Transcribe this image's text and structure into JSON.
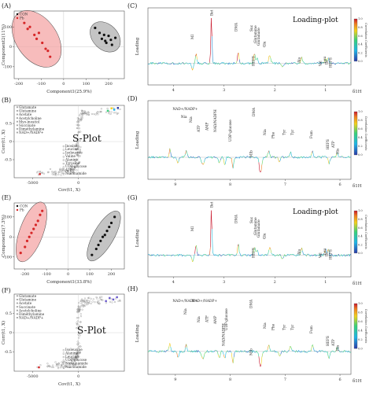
{
  "panels": {
    "A": {
      "letter": "(A)"
    },
    "B": {
      "letter": "(B)"
    },
    "C": {
      "letter": "(C)"
    },
    "D": {
      "letter": "(D)"
    },
    "E": {
      "letter": "(E)"
    },
    "F": {
      "letter": "(F)"
    },
    "G": {
      "letter": "(G)"
    },
    "H": {
      "letter": "(H)"
    }
  },
  "chart_data": [
    {
      "id": "A",
      "type": "scatter",
      "xlabel": "Component1(25.9%)",
      "ylabel": "Component2(11%)",
      "xlim": [
        -220,
        270
      ],
      "ylim": [
        -160,
        180
      ],
      "xticks": [
        -200,
        -100,
        0,
        100,
        200
      ],
      "yticks": [
        -100,
        0,
        100
      ],
      "legend": [
        "CON",
        "Pb"
      ],
      "colors": {
        "CON": "#111111",
        "Pb": "#d62728",
        "pb_ellipse": "#f4a6a6",
        "con_ellipse": "#b0b0b0"
      },
      "series": [
        {
          "name": "CON",
          "x": [
            140,
            160,
            170,
            180,
            185,
            190,
            200,
            210,
            215,
            230
          ],
          "y": [
            95,
            70,
            40,
            60,
            30,
            20,
            55,
            35,
            10,
            45
          ]
        },
        {
          "name": "Pb",
          "x": [
            -175,
            -160,
            -150,
            -130,
            -120,
            -110,
            -95,
            -80,
            -70,
            -60
          ],
          "y": [
            120,
            90,
            100,
            60,
            40,
            70,
            20,
            -10,
            -20,
            -50
          ]
        }
      ]
    },
    {
      "id": "B",
      "type": "scatter",
      "title": "S-Plot",
      "xlabel": "Cov(t1, X)",
      "ylabel": "Corr(t1, X)",
      "xlim": [
        -7000,
        5000
      ],
      "ylim": [
        -1,
        1
      ],
      "xticks": [
        -5000,
        0
      ],
      "yticks": [
        -0.5,
        0,
        0.5
      ],
      "legend_left": [
        "Glutamate",
        "Glutamine",
        "Acetate",
        "Acetylcholine",
        "Myo-inositol",
        "Succinate",
        "Dimethylamine",
        "NAD+/NADP+"
      ],
      "legend_right": [
        "Inosine",
        "Leucine",
        "Isoleucine",
        "Valine",
        "Alanine",
        "Tyrosine",
        "UDP-glucose",
        "ATP",
        "Niacinamide"
      ]
    },
    {
      "id": "C",
      "type": "line",
      "title": "Loading-plot",
      "xlabel": "δ1H",
      "ylabel": "Loading",
      "xticks": [
        4,
        3,
        2,
        1
      ],
      "annotations": [
        "MI",
        "Bet",
        "DMA",
        "Suc",
        "Glutamine",
        "Glutamate",
        "Glu",
        "HEFS",
        "Ala",
        "Val",
        "Leu",
        "Ile",
        "HEFS"
      ],
      "colorbar_label": "Correlation Coefficients",
      "colorbar_ticks": [
        "1.0",
        "0.8",
        "0.6",
        "0.4",
        "0.2",
        "0.0"
      ]
    },
    {
      "id": "D",
      "type": "line",
      "xlabel": "δ1H",
      "ylabel": "Loading",
      "xticks": [
        9,
        8,
        7,
        6
      ],
      "annotations": [
        "NAD+/NADP+",
        "Nia",
        "Nia",
        "ATP",
        "AMP",
        "NAD/NADPH",
        "UDP-glucose",
        "DMA",
        "MIb",
        "Nia",
        "Phe",
        "Tyr",
        "Tyr",
        "Fum",
        "HEFS",
        "ATP",
        "His"
      ],
      "colorbar_label": "Correlation Coefficients",
      "colorbar_ticks": [
        "1.0",
        "0.8",
        "0.6",
        "0.4",
        "0.2",
        "0.0"
      ]
    },
    {
      "id": "E",
      "type": "scatter",
      "xlabel": "Component1(33.8%)",
      "ylabel": "Component2(7.3%)",
      "xlim": [
        -250,
        260
      ],
      "ylim": [
        -160,
        170
      ],
      "xticks": [
        -200,
        -100,
        0,
        100,
        200
      ],
      "yticks": [
        -100,
        0,
        100
      ],
      "legend": [
        "CON",
        "Pb"
      ],
      "colors": {
        "CON": "#111111",
        "Pb": "#d62728",
        "pb_ellipse": "#f4a6a6",
        "con_ellipse": "#b0b0b0"
      },
      "series": [
        {
          "name": "CON",
          "x": [
            110,
            130,
            140,
            150,
            160,
            170,
            180,
            190,
            200,
            215
          ],
          "y": [
            -90,
            -60,
            -40,
            -20,
            0,
            10,
            30,
            50,
            70,
            100
          ]
        },
        {
          "name": "Pb",
          "x": [
            -220,
            -200,
            -190,
            -180,
            -170,
            -160,
            -150,
            -140,
            -130,
            -120
          ],
          "y": [
            -80,
            -50,
            -20,
            0,
            20,
            40,
            60,
            80,
            110,
            130
          ]
        }
      ]
    },
    {
      "id": "F",
      "type": "scatter",
      "title": "S-Plot",
      "xlabel": "Cov(t1, X)",
      "ylabel": "Corr(t1, X)",
      "xlim": [
        -7000,
        5000
      ],
      "ylim": [
        -1,
        1
      ],
      "xticks": [
        -5000,
        0
      ],
      "yticks": [
        -0.5,
        0,
        0.5
      ],
      "legend_left": [
        "Glutamate",
        "Glutamine",
        "Acetate",
        "Succinate",
        "Acetylcholine",
        "Dimethylamine",
        "NAD+/NADP+"
      ],
      "legend_right": [
        "Isoleucine",
        "Alanine",
        "Leucine",
        "UDP-glucose",
        "Nicotinamide",
        "Niacinamide"
      ]
    },
    {
      "id": "G",
      "type": "line",
      "title": "Loading-plot",
      "xlabel": "δ1H",
      "ylabel": "Loading",
      "xticks": [
        4,
        3,
        2,
        1
      ],
      "annotations": [
        "MI",
        "Bet",
        "DMA",
        "Suc",
        "Glutamine",
        "Glutamate",
        "Glu",
        "HEFS",
        "Ala",
        "Val",
        "Leu",
        "Ile",
        "HEFS"
      ],
      "colorbar_label": "Correlation Coefficients",
      "colorbar_ticks": [
        "1.0",
        "0.8",
        "0.6",
        "0.4",
        "0.2",
        "0.0"
      ]
    },
    {
      "id": "H",
      "type": "line",
      "xlabel": "δ1H",
      "ylabel": "Loading",
      "xticks": [
        9,
        8,
        7,
        6
      ],
      "annotations": [
        "NAD+/NADP+",
        "NAD+/NADP+",
        "Nia",
        "Nia",
        "ATP",
        "AMP",
        "UDP-glucose",
        "NAD/NADPH",
        "DMA",
        "MIb",
        "Nia",
        "Phe",
        "Tyr",
        "Tyr",
        "Fum",
        "HEFS",
        "ATP",
        "His"
      ],
      "colorbar_label": "Correlation Coefficients",
      "colorbar_ticks": [
        "1.0",
        "0.8",
        "0.6",
        "0.4",
        "0.2",
        "0.0"
      ]
    }
  ]
}
